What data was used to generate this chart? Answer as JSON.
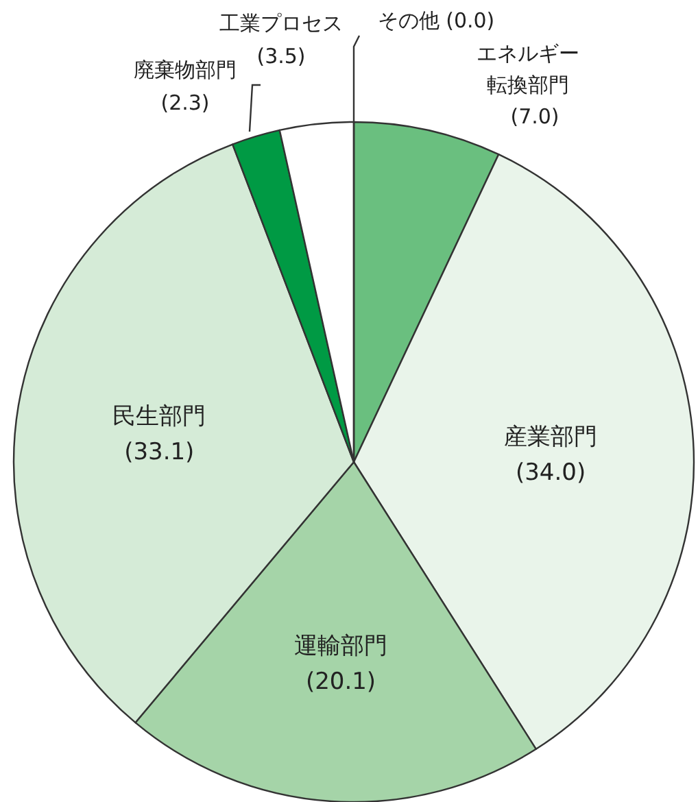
{
  "chart_data": {
    "type": "pie",
    "categories": [
      "エネルギー転換部門",
      "産業部門",
      "運輸部門",
      "民生部門",
      "廃棄物部門",
      "工業プロセス",
      "その他"
    ],
    "values": [
      7.0,
      34.0,
      20.1,
      33.1,
      2.3,
      3.5,
      0.0
    ],
    "value_labels": [
      "(7.0)",
      "(34.0)",
      "(20.1)",
      "(33.1)",
      "(2.3)",
      "(3.5)",
      "(0.0)"
    ],
    "colors": [
      "#6abf7f",
      "#e9f4ea",
      "#a5d4a8",
      "#d5ebd7",
      "#009a44",
      "#ffffff",
      "#ffffff"
    ]
  }
}
